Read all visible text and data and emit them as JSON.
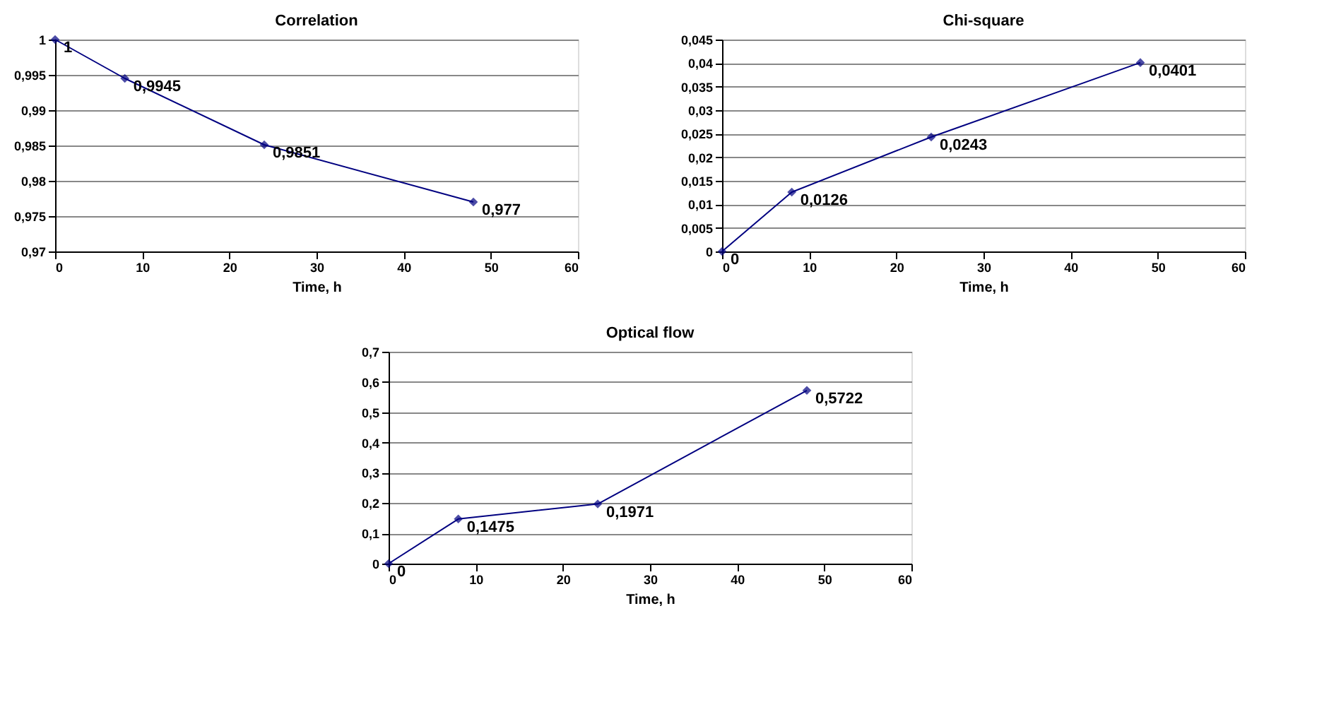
{
  "chart_data": [
    {
      "type": "line",
      "title": "Correlation",
      "xlabel": "Time, h",
      "x": [
        0,
        8,
        24,
        48
      ],
      "xlim": [
        0,
        60
      ],
      "xticks": [
        0,
        10,
        20,
        30,
        40,
        50,
        60
      ],
      "ylim": [
        0.97,
        1
      ],
      "yticks": [
        {
          "value": 0.97,
          "label": "0,97"
        },
        {
          "value": 0.975,
          "label": "0,975"
        },
        {
          "value": 0.98,
          "label": "0,98"
        },
        {
          "value": 0.985,
          "label": "0,985"
        },
        {
          "value": 0.99,
          "label": "0,99"
        },
        {
          "value": 0.995,
          "label": "0,995"
        },
        {
          "value": 1,
          "label": "1"
        }
      ],
      "grid": "y",
      "marker": "diamond",
      "line_style": "solid",
      "series": [
        {
          "color": "#000080",
          "values": [
            1,
            0.9945,
            0.9851,
            0.977
          ],
          "value_labels": [
            "1",
            "0,9945",
            "0,9851",
            "0,977"
          ]
        }
      ]
    },
    {
      "type": "line",
      "title": "Chi-square",
      "xlabel": "Time, h",
      "x": [
        0,
        8,
        24,
        48
      ],
      "xlim": [
        0,
        60
      ],
      "xticks": [
        0,
        10,
        20,
        30,
        40,
        50,
        60
      ],
      "ylim": [
        0,
        0.045
      ],
      "yticks": [
        0,
        {
          "value": 0.005,
          "label": "0,005"
        },
        {
          "value": 0.01,
          "label": "0,01"
        },
        {
          "value": 0.015,
          "label": "0,015"
        },
        {
          "value": 0.02,
          "label": "0,02"
        },
        {
          "value": 0.025,
          "label": "0,025"
        },
        {
          "value": 0.03,
          "label": "0,03"
        },
        {
          "value": 0.035,
          "label": "0,035"
        },
        {
          "value": 0.04,
          "label": "0,04"
        },
        {
          "value": 0.045,
          "label": "0,045"
        }
      ],
      "grid": "y",
      "marker": "diamond",
      "line_style": "solid",
      "series": [
        {
          "color": "#000080",
          "values": [
            0,
            0.0126,
            0.0243,
            0.0401
          ],
          "value_labels": [
            "0",
            "0,0126",
            "0,0243",
            "0,0401"
          ]
        }
      ]
    },
    {
      "type": "line",
      "title": "Optical flow",
      "xlabel": "Time, h",
      "x": [
        0,
        8,
        24,
        48
      ],
      "xlim": [
        0,
        60
      ],
      "xticks": [
        0,
        10,
        20,
        30,
        40,
        50,
        60
      ],
      "ylim": [
        0,
        0.7
      ],
      "yticks": [
        0,
        {
          "value": 0.1,
          "label": "0,1"
        },
        {
          "value": 0.2,
          "label": "0,2"
        },
        {
          "value": 0.3,
          "label": "0,3"
        },
        {
          "value": 0.4,
          "label": "0,4"
        },
        {
          "value": 0.5,
          "label": "0,5"
        },
        {
          "value": 0.6,
          "label": "0,6"
        },
        {
          "value": 0.7,
          "label": "0,7"
        }
      ],
      "grid": "y",
      "marker": "diamond",
      "line_style": "solid",
      "series": [
        {
          "color": "#000080",
          "values": [
            0,
            0.1475,
            0.1971,
            0.5722
          ],
          "value_labels": [
            "0",
            "0,1475",
            "0,1971",
            "0,5722"
          ]
        }
      ]
    }
  ]
}
